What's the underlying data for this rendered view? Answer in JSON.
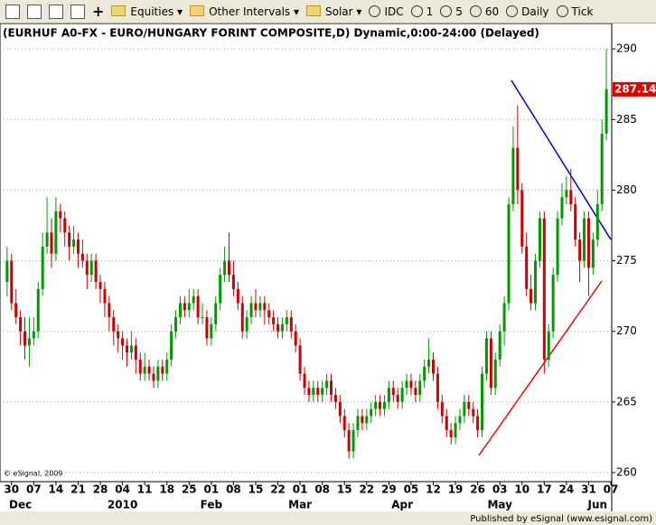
{
  "toolbar": {
    "menus": [
      "Equities",
      "Other Intervals",
      "Solar"
    ],
    "buttons": [
      "IDC",
      "1",
      "5",
      "60",
      "Daily",
      "Tick"
    ]
  },
  "chart_data": {
    "type": "candlestick",
    "title": "(EURHUF A0-FX - EURO/HUNGARY FORINT COMPOSITE,D) Dynamic,0:00-24:00 (Delayed)",
    "watermark": "© eSignal, 2009",
    "footer": "Published by eSignal (www.esignal.com)",
    "up_color": "#009900",
    "down_color": "#cc0000",
    "grid": true,
    "xlim": [
      -1.6,
      136.2
    ],
    "ylim": [
      259.36,
      291.8
    ],
    "yticks": [
      260,
      265,
      270,
      275,
      280,
      285,
      290
    ],
    "xticks": [
      {
        "value": 1,
        "label": "30"
      },
      {
        "value": 6,
        "label": "07"
      },
      {
        "value": 11,
        "label": "14"
      },
      {
        "value": 16,
        "label": "21"
      },
      {
        "value": 21,
        "label": "28"
      },
      {
        "value": 26,
        "label": "04"
      },
      {
        "value": 31,
        "label": "11"
      },
      {
        "value": 36,
        "label": "18"
      },
      {
        "value": 41,
        "label": "25"
      },
      {
        "value": 46,
        "label": "01"
      },
      {
        "value": 51,
        "label": "08"
      },
      {
        "value": 56,
        "label": "15"
      },
      {
        "value": 61,
        "label": "22"
      },
      {
        "value": 66,
        "label": "01"
      },
      {
        "value": 71,
        "label": "08"
      },
      {
        "value": 76,
        "label": "15"
      },
      {
        "value": 81,
        "label": "22"
      },
      {
        "value": 86,
        "label": "29"
      },
      {
        "value": 91,
        "label": "05"
      },
      {
        "value": 96,
        "label": "12"
      },
      {
        "value": 101,
        "label": "19"
      },
      {
        "value": 106,
        "label": "26"
      },
      {
        "value": 111,
        "label": "03"
      },
      {
        "value": 116,
        "label": "10"
      },
      {
        "value": 121,
        "label": "17"
      },
      {
        "value": 126,
        "label": "24"
      },
      {
        "value": 131,
        "label": "31"
      },
      {
        "value": 136,
        "label": "07"
      }
    ],
    "month_labels": [
      {
        "value": 3,
        "label": "Dec"
      },
      {
        "value": 26,
        "label": "2010"
      },
      {
        "value": 46,
        "label": "Feb"
      },
      {
        "value": 66,
        "label": "Mar"
      },
      {
        "value": 89,
        "label": "Apr"
      },
      {
        "value": 111,
        "label": "May"
      },
      {
        "value": 133,
        "label": "Jun"
      }
    ],
    "candles": [
      [
        273.5,
        276,
        272.5,
        275
      ],
      [
        275,
        275.5,
        271.5,
        272
      ],
      [
        272,
        273,
        270.5,
        271
      ],
      [
        271,
        271.5,
        269,
        270
      ],
      [
        270,
        271,
        268,
        269
      ],
      [
        269,
        271,
        267.5,
        269.5
      ],
      [
        269.5,
        271,
        269,
        270
      ],
      [
        270,
        273.5,
        269.5,
        273
      ],
      [
        273,
        277,
        272.5,
        276
      ],
      [
        276,
        279.5,
        275.5,
        277
      ],
      [
        277,
        278,
        274.5,
        275.5
      ],
      [
        275.5,
        279.5,
        275,
        278.5
      ],
      [
        278.5,
        279,
        277,
        278
      ],
      [
        278,
        278.5,
        276,
        277
      ],
      [
        277,
        277.5,
        275,
        276
      ],
      [
        276,
        277.5,
        275.5,
        276.5
      ],
      [
        276.5,
        277,
        274.5,
        275.5
      ],
      [
        275.5,
        276.5,
        274.5,
        275
      ],
      [
        275,
        275.5,
        273,
        274
      ],
      [
        274,
        275.5,
        273.5,
        275
      ],
      [
        275,
        275.5,
        273,
        273.5
      ],
      [
        273.5,
        274,
        272,
        273
      ],
      [
        273,
        273.5,
        271,
        272
      ],
      [
        272,
        272.5,
        270,
        271
      ],
      [
        271,
        271.5,
        269,
        270
      ],
      [
        270,
        270.5,
        268.5,
        269.5
      ],
      [
        269.5,
        270,
        268,
        269
      ],
      [
        269,
        269.5,
        267.5,
        268.5
      ],
      [
        268.5,
        270,
        268,
        269
      ],
      [
        269,
        269.5,
        267,
        268
      ],
      [
        268,
        268.5,
        266.5,
        267
      ],
      [
        267,
        268.5,
        266.5,
        267.5
      ],
      [
        267.5,
        268,
        266.5,
        267
      ],
      [
        267,
        267.5,
        266,
        266.5
      ],
      [
        266.5,
        268,
        266,
        267.5
      ],
      [
        267.5,
        268,
        266.5,
        267
      ],
      [
        267,
        268.5,
        266.5,
        268
      ],
      [
        268,
        270.5,
        267.5,
        270
      ],
      [
        270,
        271.5,
        269.5,
        271
      ],
      [
        271,
        272.5,
        270.5,
        272
      ],
      [
        272,
        272.5,
        271,
        271.5
      ],
      [
        271.5,
        273,
        271,
        272
      ],
      [
        272,
        273,
        271.5,
        272.5
      ],
      [
        272.5,
        273,
        270.5,
        271
      ],
      [
        271,
        272,
        270.5,
        271
      ],
      [
        271,
        271.5,
        269,
        269.5
      ],
      [
        269.5,
        271,
        269,
        270.5
      ],
      [
        270.5,
        272.5,
        270,
        272
      ],
      [
        272,
        274.5,
        271.5,
        274
      ],
      [
        274,
        276,
        273.5,
        275
      ],
      [
        275,
        277,
        273.5,
        274
      ],
      [
        274,
        275,
        272.5,
        273
      ],
      [
        273,
        273.5,
        271.5,
        272
      ],
      [
        272,
        272.5,
        269.5,
        270
      ],
      [
        270,
        271.5,
        269.5,
        271
      ],
      [
        271,
        272.5,
        270.5,
        272
      ],
      [
        272,
        273,
        271,
        271.5
      ],
      [
        271.5,
        272.5,
        271,
        272
      ],
      [
        272,
        272.5,
        270.5,
        271.5
      ],
      [
        271.5,
        272,
        270.5,
        271
      ],
      [
        271,
        271.5,
        270,
        270.5
      ],
      [
        270.5,
        271,
        269.5,
        270
      ],
      [
        270,
        271,
        269.5,
        270.5
      ],
      [
        270.5,
        271.5,
        270,
        271
      ],
      [
        271,
        271.5,
        269.5,
        270
      ],
      [
        270,
        270.5,
        268.5,
        269
      ],
      [
        269,
        269.5,
        266.5,
        267
      ],
      [
        267,
        267.5,
        265.5,
        266
      ],
      [
        266,
        266.5,
        265,
        265.5
      ],
      [
        265.5,
        266.5,
        265,
        266
      ],
      [
        266,
        266.5,
        265,
        265.5
      ],
      [
        265.5,
        266.5,
        265,
        266
      ],
      [
        266,
        267,
        265.5,
        266.5
      ],
      [
        266.5,
        267,
        265,
        265.5
      ],
      [
        265.5,
        266,
        264.5,
        265
      ],
      [
        265,
        265.5,
        263.5,
        264
      ],
      [
        264,
        264.5,
        262.5,
        263
      ],
      [
        263,
        263.5,
        261,
        261.5
      ],
      [
        261.5,
        263.5,
        261,
        263
      ],
      [
        263,
        264.5,
        262.5,
        264
      ],
      [
        264,
        264.5,
        263,
        263.5
      ],
      [
        263.5,
        264.5,
        263,
        264
      ],
      [
        264,
        265,
        263.5,
        264.5
      ],
      [
        264.5,
        265.5,
        264,
        265
      ],
      [
        265,
        265.5,
        264,
        264.5
      ],
      [
        264.5,
        265.5,
        264,
        265
      ],
      [
        265,
        266.5,
        264.5,
        266
      ],
      [
        266,
        266.5,
        265,
        265.5
      ],
      [
        265.5,
        266,
        264.5,
        265
      ],
      [
        265,
        266.5,
        264.5,
        266
      ],
      [
        266,
        267,
        265.5,
        266.5
      ],
      [
        266.5,
        267,
        265.5,
        266
      ],
      [
        266,
        266.5,
        265,
        265.5
      ],
      [
        265.5,
        267,
        265,
        266.5
      ],
      [
        266.5,
        268,
        266,
        267.5
      ],
      [
        267.5,
        269.5,
        267,
        268
      ],
      [
        268,
        268.5,
        266.5,
        267
      ],
      [
        267,
        267.5,
        264.5,
        265
      ],
      [
        265,
        265.5,
        263.5,
        264
      ],
      [
        264,
        264.5,
        262.5,
        263
      ],
      [
        263,
        263.5,
        262,
        262.5
      ],
      [
        262.5,
        264,
        262,
        263.5
      ],
      [
        263.5,
        264.5,
        263,
        264
      ],
      [
        264,
        265.5,
        263.5,
        265
      ],
      [
        265,
        265.5,
        264,
        264.5
      ],
      [
        264.5,
        265,
        263.5,
        264
      ],
      [
        264,
        264.5,
        262.5,
        263
      ],
      [
        263,
        267.5,
        262.5,
        267
      ],
      [
        267,
        270,
        266.5,
        269.5
      ],
      [
        269.5,
        270,
        265.5,
        266
      ],
      [
        266,
        268.5,
        265.5,
        268
      ],
      [
        268,
        270.5,
        267.5,
        270
      ],
      [
        270,
        272.5,
        269,
        272
      ],
      [
        272,
        279.5,
        271.5,
        279
      ],
      [
        279,
        284.5,
        278.5,
        283
      ],
      [
        283,
        286,
        279,
        280
      ],
      [
        280,
        280.5,
        275.5,
        276
      ],
      [
        276,
        277,
        272.5,
        273
      ],
      [
        273,
        274,
        271.5,
        272
      ],
      [
        272,
        275.5,
        271.5,
        275
      ],
      [
        275,
        278.5,
        274.5,
        278
      ],
      [
        278,
        278.5,
        267,
        268
      ],
      [
        268,
        270.5,
        267.5,
        270
      ],
      [
        270,
        274.5,
        269.5,
        274
      ],
      [
        274,
        278.5,
        273.5,
        278
      ],
      [
        278,
        280.5,
        277.5,
        279.5
      ],
      [
        279.5,
        281,
        279,
        280
      ],
      [
        280,
        281.5,
        278.5,
        279
      ],
      [
        279,
        279.5,
        276,
        276.5
      ],
      [
        276.5,
        277,
        273.5,
        275
      ],
      [
        275,
        278.5,
        274.5,
        278
      ],
      [
        278,
        278.5,
        272.5,
        274.5
      ],
      [
        274.5,
        277,
        274,
        276.5
      ],
      [
        276.5,
        280,
        276,
        279
      ],
      [
        279,
        285,
        278.5,
        284
      ],
      [
        284,
        290,
        283.5,
        287.14
      ]
    ]
  }
}
